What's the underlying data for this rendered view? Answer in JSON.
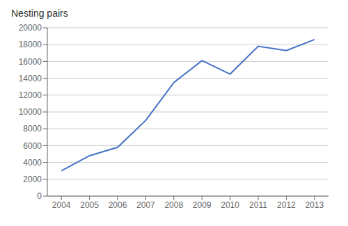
{
  "chart_data": {
    "type": "line",
    "ylabel": "Nesting pairs",
    "x": [
      2004,
      2005,
      2006,
      2007,
      2008,
      2009,
      2010,
      2011,
      2012,
      2013
    ],
    "values": [
      3000,
      4800,
      5800,
      9000,
      13500,
      16100,
      14500,
      17800,
      17300,
      18600
    ],
    "color": "#4472C4",
    "xlim": [
      2003.5,
      2013.5
    ],
    "xticks": [
      2004,
      2005,
      2006,
      2007,
      2008,
      2009,
      2010,
      2011,
      2012,
      2013
    ],
    "ylim": [
      0,
      20000
    ],
    "yticks": [
      0,
      2000,
      4000,
      6000,
      8000,
      10000,
      12000,
      14000,
      16000,
      18000,
      20000
    ],
    "grid": "y"
  }
}
